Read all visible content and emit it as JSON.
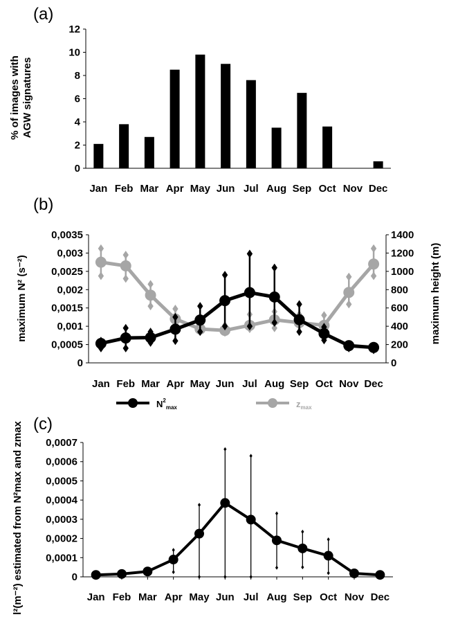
{
  "chart_data": [
    {
      "panel": "(a)",
      "type": "bar",
      "categories": [
        "Jan",
        "Feb",
        "Mar",
        "Apr",
        "May",
        "Jun",
        "Jul",
        "Aug",
        "Sep",
        "Oct",
        "Nov",
        "Dec"
      ],
      "values": [
        2.1,
        3.8,
        2.7,
        8.5,
        9.8,
        9.0,
        7.6,
        3.5,
        6.5,
        3.6,
        0,
        0.6
      ],
      "ylabel_line1": "% of images with",
      "ylabel_line2": "AGW signatures",
      "ylim": [
        0,
        12
      ],
      "yticks": [
        "0",
        "2",
        "4",
        "6",
        "8",
        "10",
        "12"
      ],
      "bar_color": "#000000"
    },
    {
      "panel": "(b)",
      "type": "line",
      "categories": [
        "Jan",
        "Feb",
        "Mar",
        "Apr",
        "May",
        "Jun",
        "Jul",
        "Aug",
        "Sep",
        "Oct",
        "Nov",
        "Dec"
      ],
      "ylabel_left": "maximum N² (s⁻²)",
      "ylabel_right": "maximum height (m)",
      "ylim_left": [
        0,
        0.0035
      ],
      "yticks_left": [
        "0",
        "0,0005",
        "0,001",
        "0,0015",
        "0,002",
        "0,0025",
        "0,003",
        "0,0035"
      ],
      "ylim_right": [
        0,
        1400
      ],
      "yticks_right": [
        "0",
        "200",
        "400",
        "600",
        "800",
        "1000",
        "1200",
        "1400"
      ],
      "series": [
        {
          "name": "N²max",
          "axis": "left",
          "color": "#000000",
          "values": [
            0.00053,
            0.00068,
            0.00069,
            0.00092,
            0.00117,
            0.0017,
            0.00192,
            0.0018,
            0.00118,
            0.0008,
            0.00047,
            0.00042
          ],
          "err_low": [
            0.0004,
            0.0004,
            0.00055,
            0.0006,
            0.00085,
            0.001,
            0.001,
            0.0011,
            0.00085,
            0.00062,
            0.0004,
            0.00035
          ],
          "err_high": [
            0.0006,
            0.00095,
            0.00085,
            0.00125,
            0.00155,
            0.0024,
            0.00298,
            0.0026,
            0.0016,
            0.00098,
            0.0005,
            0.00045
          ]
        },
        {
          "name": "zmax",
          "axis": "right",
          "color": "#a6a6a6",
          "values": [
            1100,
            1060,
            740,
            480,
            370,
            355,
            410,
            470,
            440,
            410,
            770,
            1080
          ],
          "err_low": [
            950,
            920,
            620,
            400,
            340,
            330,
            370,
            380,
            400,
            390,
            640,
            950
          ],
          "err_high": [
            1250,
            1180,
            860,
            590,
            430,
            410,
            530,
            560,
            530,
            520,
            940,
            1250
          ]
        }
      ],
      "legend": [
        {
          "base": "N",
          "sup": "2",
          "sub": "max",
          "color": "#000000"
        },
        {
          "base": "z",
          "sup": "",
          "sub": "max",
          "color": "#a6a6a6"
        }
      ]
    },
    {
      "panel": "(c)",
      "type": "line",
      "categories": [
        "Jan",
        "Feb",
        "Mar",
        "Apr",
        "May",
        "Jun",
        "Jul",
        "Aug",
        "Sep",
        "Oct",
        "Nov",
        "Dec"
      ],
      "ylabel": "l²(m⁻²) estimated from N²max and zmax",
      "ylim": [
        0,
        0.0007
      ],
      "yticks": [
        "0",
        "0,0001",
        "0,0002",
        "0,0003",
        "0,0004",
        "0,0005",
        "0,0006",
        "0,0007"
      ],
      "values": [
        1e-05,
        1.5e-05,
        2.8e-05,
        9e-05,
        0.000225,
        0.000385,
        0.000298,
        0.00019,
        0.000148,
        0.00011,
        1.8e-05,
        1e-05
      ],
      "err_low": [
        1e-05,
        1.5e-05,
        2.8e-05,
        2.5e-05,
        0,
        0,
        0,
        4.8e-05,
        5e-05,
        2e-05,
        1.8e-05,
        1e-05
      ],
      "err_high": [
        1e-05,
        1.5e-05,
        2.8e-05,
        0.00014,
        0.000375,
        0.000665,
        0.00063,
        0.00033,
        0.000235,
        0.000195,
        1.8e-05,
        1e-05
      ],
      "color": "#000000"
    }
  ]
}
